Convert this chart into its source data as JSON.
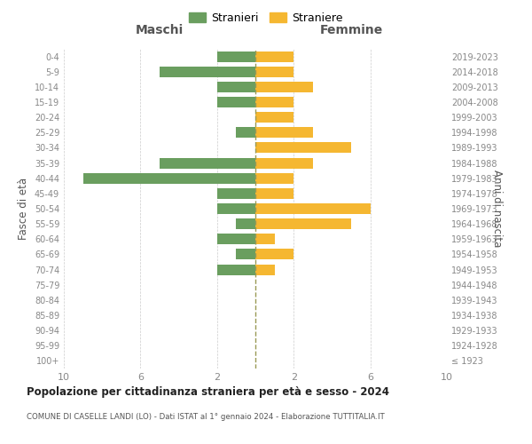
{
  "age_groups": [
    "100+",
    "95-99",
    "90-94",
    "85-89",
    "80-84",
    "75-79",
    "70-74",
    "65-69",
    "60-64",
    "55-59",
    "50-54",
    "45-49",
    "40-44",
    "35-39",
    "30-34",
    "25-29",
    "20-24",
    "15-19",
    "10-14",
    "5-9",
    "0-4"
  ],
  "birth_years": [
    "≤ 1923",
    "1924-1928",
    "1929-1933",
    "1934-1938",
    "1939-1943",
    "1944-1948",
    "1949-1953",
    "1954-1958",
    "1959-1963",
    "1964-1968",
    "1969-1973",
    "1974-1978",
    "1979-1983",
    "1984-1988",
    "1989-1993",
    "1994-1998",
    "1999-2003",
    "2004-2008",
    "2009-2013",
    "2014-2018",
    "2019-2023"
  ],
  "maschi": [
    0,
    0,
    0,
    0,
    0,
    0,
    2,
    1,
    2,
    1,
    2,
    2,
    9,
    5,
    0,
    1,
    0,
    2,
    2,
    5,
    2
  ],
  "femmine": [
    0,
    0,
    0,
    0,
    0,
    0,
    1,
    2,
    1,
    5,
    6,
    2,
    2,
    3,
    5,
    3,
    2,
    2,
    3,
    2,
    2
  ],
  "male_color": "#6a9e5f",
  "female_color": "#f5b731",
  "center_line_color": "#999955",
  "title_main": "Popolazione per cittadinanza straniera per età e sesso - 2024",
  "title_sub": "COMUNE DI CASELLE LANDI (LO) - Dati ISTAT al 1° gennaio 2024 - Elaborazione TUTTITALIA.IT",
  "legend_maschi": "Stranieri",
  "legend_femmine": "Straniere",
  "label_maschi": "Maschi",
  "label_femmine": "Femmine",
  "ylabel_left": "Fasce di età",
  "ylabel_right": "Anni di nascita",
  "xlim": 10,
  "background_color": "#ffffff",
  "grid_color": "#cccccc",
  "bar_height": 0.7
}
